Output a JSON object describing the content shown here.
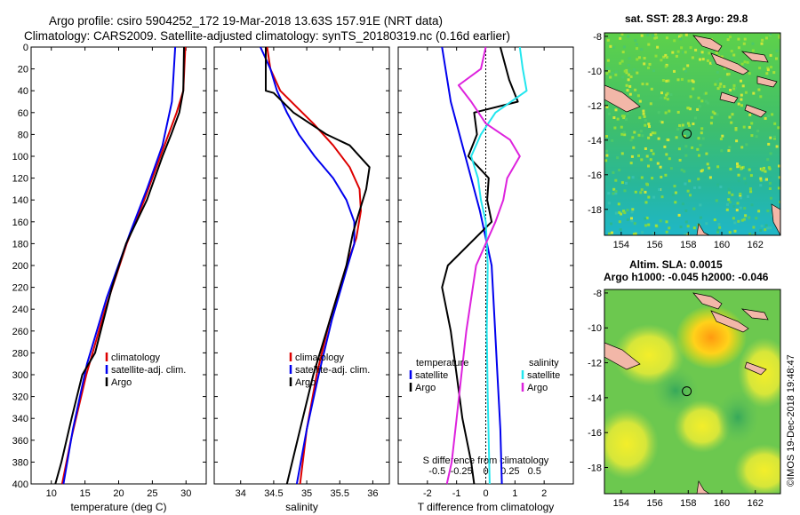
{
  "header": {
    "title_line1": "Argo profile: csiro 5904252_172 19-Mar-2018 13.63S 157.91E (NRT data)",
    "title_line2": "Climatology: CARS2009. Satellite-adjusted climatology: synTS_20180319.nc (0.16d earlier)"
  },
  "credit": "©IMOS 19-Dec-2018 19:48:47",
  "colors": {
    "climatology": "#dd0000",
    "satellite": "#0000ee",
    "argo": "#000000",
    "sat_salinity": "#22e6ee",
    "argo_salinity": "#dd22dd"
  },
  "chart_data": [
    {
      "id": "temperature",
      "type": "line",
      "xlabel": "temperature (deg C)",
      "ylabel": "",
      "xlim": [
        7,
        33
      ],
      "ylim": [
        400,
        0
      ],
      "xticks": [
        10,
        15,
        20,
        25,
        30
      ],
      "yticks": [
        0,
        20,
        40,
        60,
        80,
        100,
        120,
        140,
        160,
        180,
        200,
        220,
        240,
        260,
        280,
        300,
        320,
        340,
        360,
        380,
        400
      ],
      "legend": [
        "climatology",
        "satellite-adj. clim.",
        "Argo"
      ],
      "series": [
        {
          "name": "climatology",
          "color": "#dd0000",
          "depth": [
            0,
            40,
            60,
            80,
            100,
            140,
            180,
            240,
            300,
            360,
            400
          ],
          "values": [
            29.9,
            29.6,
            28.6,
            27.4,
            26.2,
            23.8,
            21.2,
            18.0,
            15.2,
            12.9,
            11.6
          ]
        },
        {
          "name": "satellite-adj. clim.",
          "color": "#0000ee",
          "depth": [
            0,
            30,
            50,
            70,
            90,
            130,
            170,
            230,
            290,
            350,
            400
          ],
          "values": [
            28.4,
            28.1,
            27.9,
            27.2,
            26.5,
            24.2,
            21.7,
            18.2,
            15.3,
            13.2,
            11.8
          ]
        },
        {
          "name": "Argo",
          "color": "#000000",
          "depth": [
            0,
            40,
            60,
            80,
            100,
            140,
            180,
            220,
            280,
            300,
            340,
            380,
            400
          ],
          "values": [
            29.7,
            29.6,
            29.0,
            27.8,
            26.5,
            24.2,
            21.1,
            19.0,
            16.5,
            14.6,
            13.0,
            11.5,
            10.6
          ]
        }
      ]
    },
    {
      "id": "salinity",
      "type": "line",
      "xlabel": "salinity",
      "ylabel": "",
      "xlim": [
        33.6,
        36.25
      ],
      "ylim": [
        400,
        0
      ],
      "xticks": [
        34,
        34.5,
        35,
        35.5,
        36
      ],
      "legend": [
        "climatology",
        "satellite-adj. clim.",
        "Argo"
      ],
      "series": [
        {
          "name": "climatology",
          "color": "#dd0000",
          "depth": [
            0,
            20,
            40,
            55,
            70,
            90,
            110,
            130,
            150,
            175,
            200,
            250,
            300,
            350,
            400
          ],
          "values": [
            34.4,
            34.45,
            34.6,
            34.85,
            35.1,
            35.4,
            35.65,
            35.8,
            35.82,
            35.75,
            35.6,
            35.35,
            35.15,
            35.0,
            34.9
          ],
          "label": "climatology"
        },
        {
          "name": "satellite-adj. clim.",
          "color": "#0000ee",
          "depth": [
            0,
            20,
            40,
            60,
            80,
            100,
            120,
            140,
            160,
            180,
            200,
            250,
            300,
            350,
            400
          ],
          "values": [
            34.3,
            34.45,
            34.55,
            34.7,
            34.88,
            35.12,
            35.4,
            35.6,
            35.72,
            35.72,
            35.62,
            35.38,
            35.18,
            35.0,
            34.85
          ]
        },
        {
          "name": "Argo",
          "color": "#000000",
          "depth": [
            0,
            40,
            42,
            60,
            80,
            90,
            110,
            130,
            150,
            170,
            200,
            260,
            300,
            350,
            400
          ],
          "values": [
            34.38,
            34.38,
            34.5,
            34.8,
            35.3,
            35.65,
            35.95,
            35.9,
            35.8,
            35.7,
            35.6,
            35.3,
            35.1,
            34.9,
            34.7
          ]
        }
      ]
    },
    {
      "id": "differences",
      "type": "line",
      "xlabel": "T difference from climatology",
      "x2label": "S difference from climatology",
      "xlim": [
        -3,
        3
      ],
      "x2lim": [
        -0.9,
        0.9
      ],
      "ylim": [
        400,
        0
      ],
      "xticks": [
        -2,
        -1,
        0,
        1,
        2
      ],
      "x2ticks": [
        -0.5,
        -0.25,
        0,
        0.25,
        0.5
      ],
      "legend_titles": [
        "temperature",
        "salinity"
      ],
      "legend": [
        "satellite",
        "Argo",
        "satellite",
        "Argo"
      ],
      "series": [
        {
          "name": "temperature satellite",
          "color": "#0000ee",
          "depth": [
            0,
            50,
            100,
            150,
            200,
            250,
            300,
            350,
            400
          ],
          "values": [
            -1.5,
            -1.2,
            -0.7,
            -0.2,
            0.2,
            0.3,
            0.4,
            0.5,
            0.55
          ]
        },
        {
          "name": "temperature Argo",
          "color": "#000000",
          "depth": [
            0,
            30,
            50,
            60,
            80,
            100,
            120,
            140,
            160,
            200,
            220,
            260,
            300,
            340,
            380,
            400
          ],
          "values": [
            0.5,
            0.8,
            1.1,
            -0.4,
            -0.3,
            -0.6,
            0.1,
            0.05,
            0.2,
            -1.3,
            -1.5,
            -1.2,
            -1.0,
            -0.8,
            -0.5,
            -0.4
          ]
        },
        {
          "name": "salinity satellite",
          "color": "#22e6ee",
          "depth": [
            0,
            20,
            40,
            60,
            80,
            100,
            120,
            140,
            160,
            200,
            260,
            320,
            400
          ],
          "values": [
            0.35,
            0.38,
            0.42,
            0.1,
            -0.05,
            -0.15,
            -0.08,
            -0.05,
            0.0,
            0.02,
            0.01,
            0.02,
            0.04
          ]
        },
        {
          "name": "salinity Argo",
          "color": "#dd22dd",
          "depth": [
            0,
            20,
            35,
            50,
            70,
            85,
            100,
            120,
            140,
            160,
            200,
            260,
            300,
            340,
            380,
            400
          ],
          "values": [
            0.0,
            -0.05,
            -0.28,
            -0.15,
            0.0,
            0.25,
            0.35,
            0.22,
            0.18,
            0.1,
            -0.1,
            -0.2,
            -0.25,
            -0.3,
            -0.35,
            -0.4
          ]
        }
      ]
    },
    {
      "id": "sst_map",
      "type": "heatmap",
      "title": "sat. SST: 28.3 Argo: 29.8",
      "xlim": [
        153,
        163.5
      ],
      "ylim": [
        -19.5,
        -7.8
      ],
      "xticks": [
        154,
        156,
        158,
        160,
        162
      ],
      "yticks": [
        -8,
        -10,
        -12,
        -14,
        -16,
        -18
      ],
      "marker": {
        "lon": 157.91,
        "lat": -13.63
      }
    },
    {
      "id": "sla_map",
      "type": "heatmap",
      "title_line1": "Altim. SLA: 0.0015",
      "title_line2": "Argo h1000: -0.045 h2000: -0.046",
      "xlim": [
        153,
        163.5
      ],
      "ylim": [
        -19.5,
        -7.8
      ],
      "xticks": [
        154,
        156,
        158,
        160,
        162
      ],
      "yticks": [
        -8,
        -10,
        -12,
        -14,
        -16,
        -18
      ],
      "marker": {
        "lon": 157.91,
        "lat": -13.63
      }
    }
  ]
}
